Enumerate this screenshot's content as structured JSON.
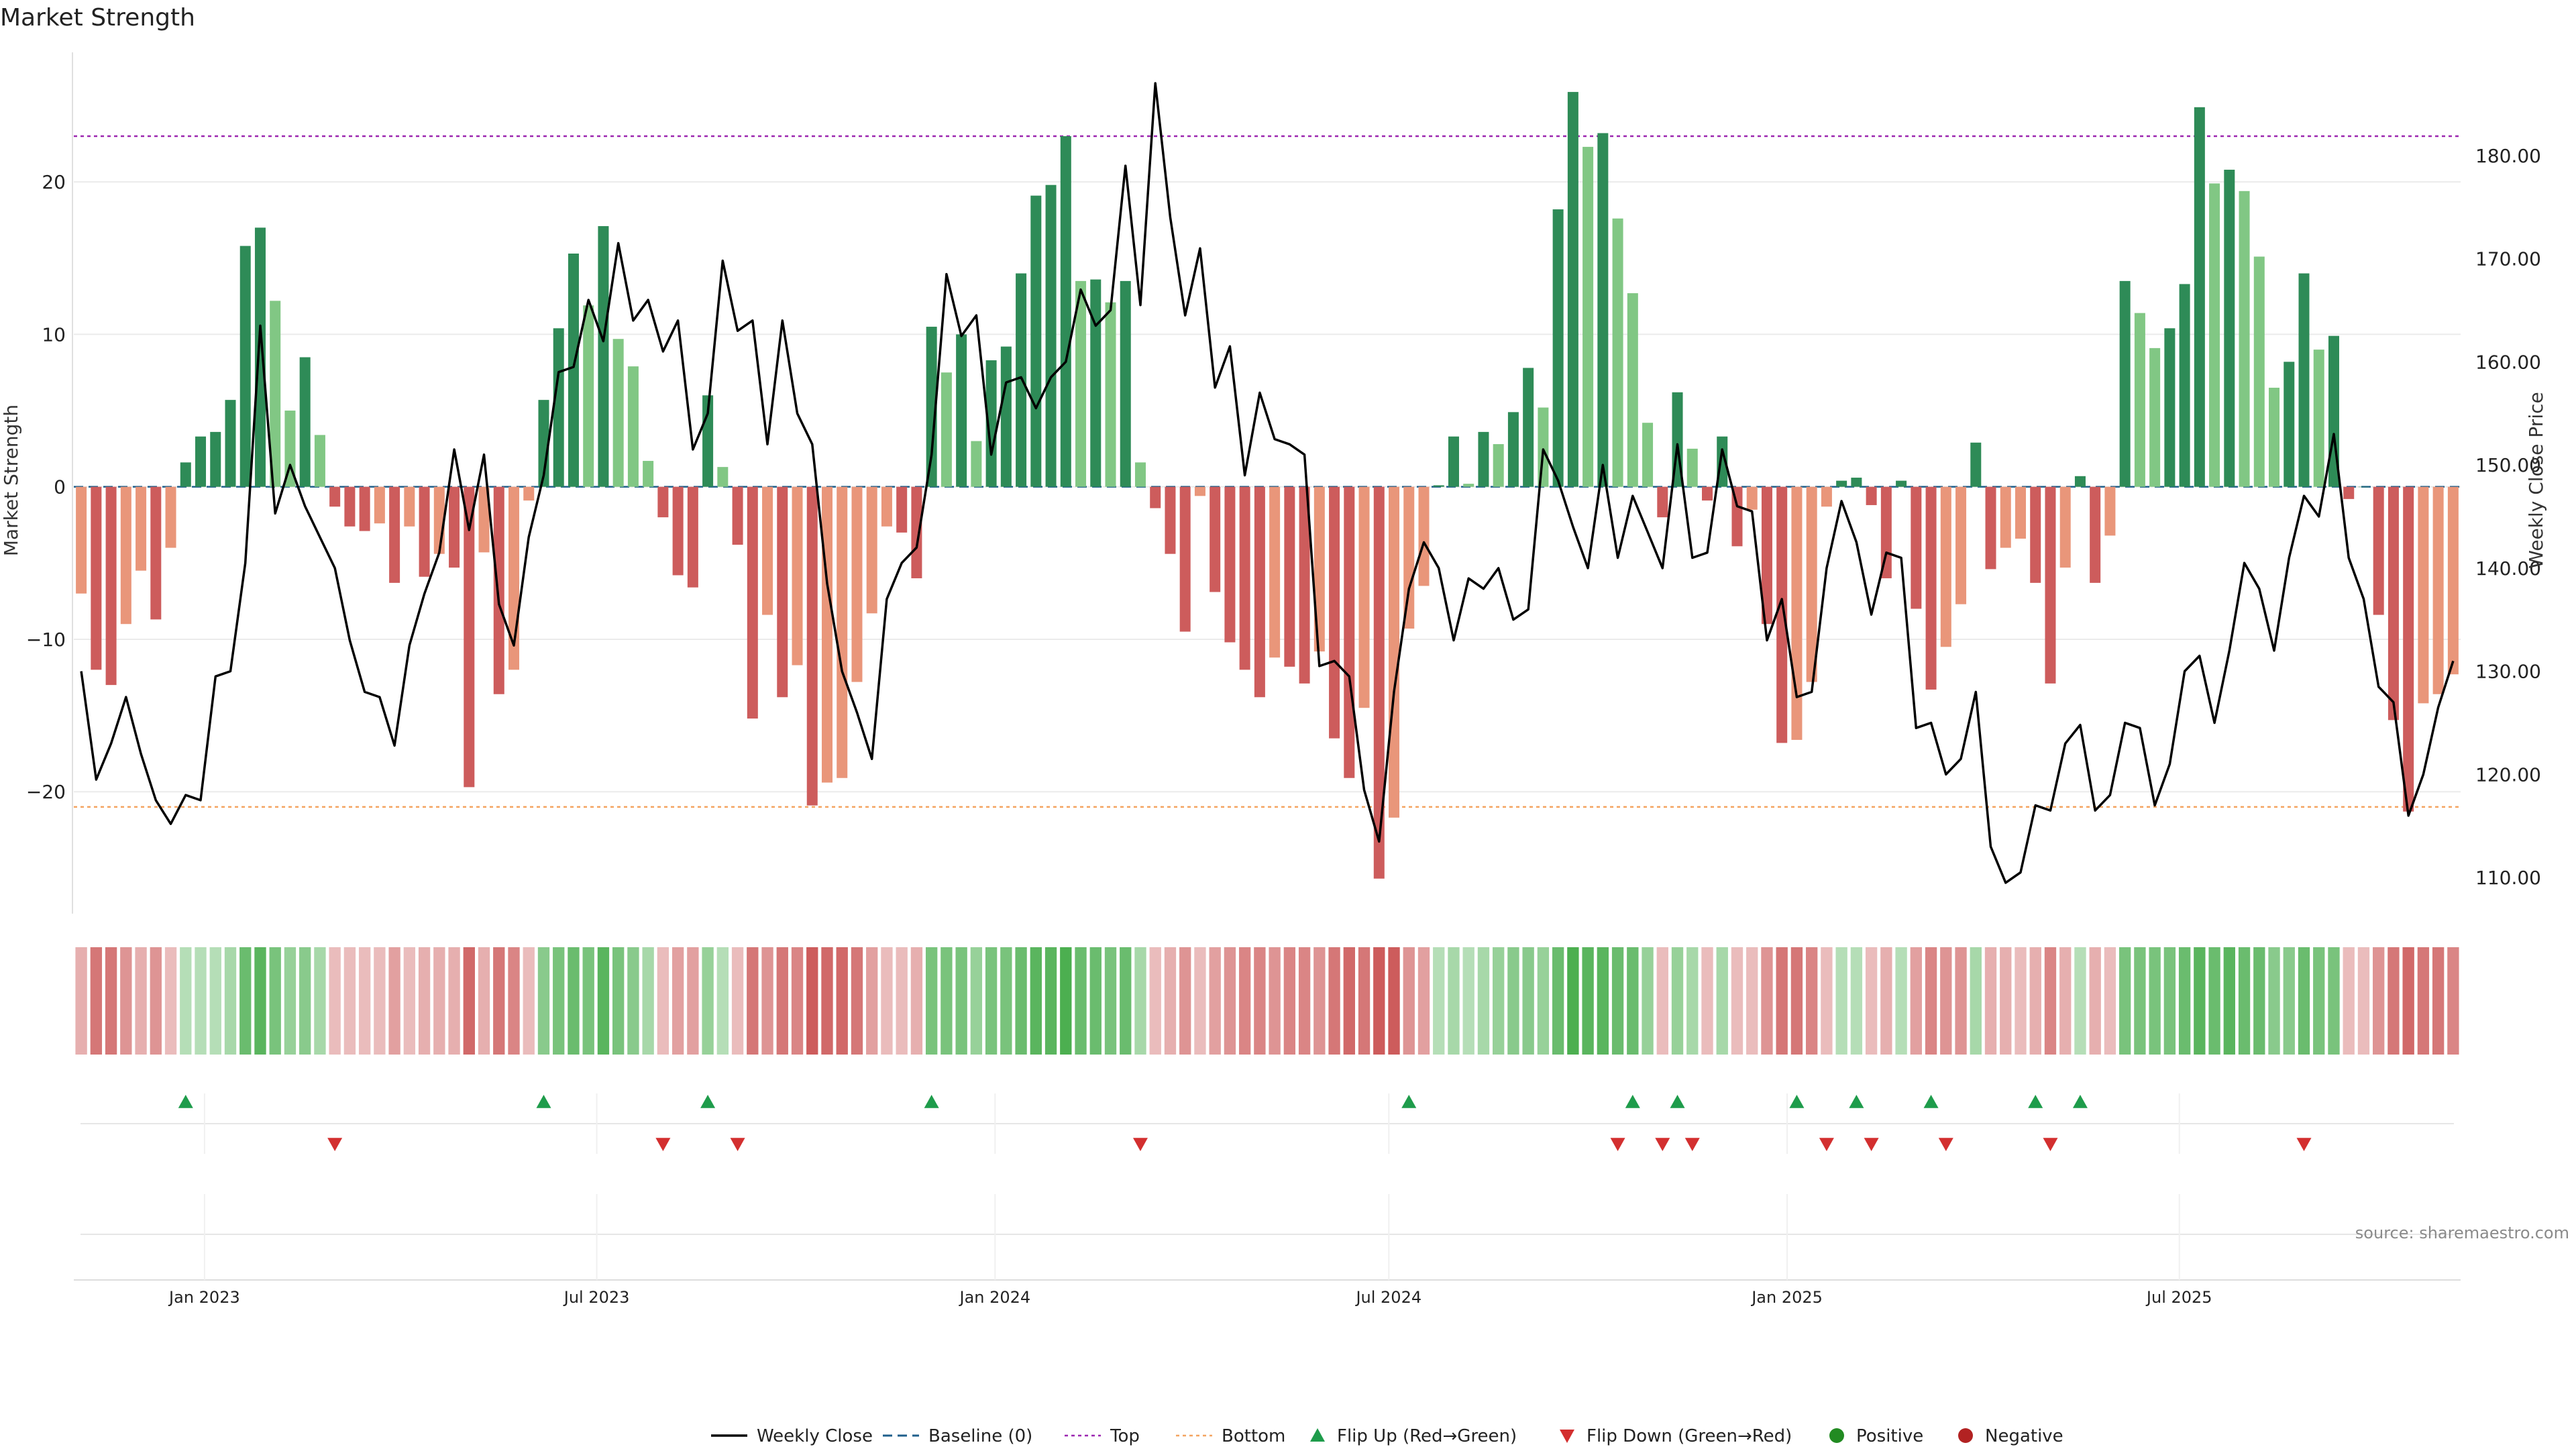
{
  "chart_data": {
    "type": "bar",
    "title": "Market Strength",
    "ylabel_left": "Market Strength",
    "ylabel_right": "Weekly Close Price",
    "source": "source: sharemaestro.com",
    "ylim_left": [
      -28,
      28.5
    ],
    "ylim_right": [
      106.5,
      190
    ],
    "yticks_left": [
      {
        "v": 20,
        "label": "20"
      },
      {
        "v": 10,
        "label": "10"
      },
      {
        "v": 0,
        "label": "0"
      },
      {
        "v": -10,
        "label": "−10"
      },
      {
        "v": -20,
        "label": "−20"
      }
    ],
    "yticks_right": [
      {
        "v": 180,
        "label": "180.00"
      },
      {
        "v": 170,
        "label": "170.00"
      },
      {
        "v": 160,
        "label": "160.00"
      },
      {
        "v": 150,
        "label": "150.00"
      },
      {
        "v": 140,
        "label": "140.00"
      },
      {
        "v": 130,
        "label": "130.00"
      },
      {
        "v": 120,
        "label": "120.00"
      },
      {
        "v": 110,
        "label": "110.00"
      }
    ],
    "x_ticks": [
      {
        "week": 8.6,
        "label": "Jan 2023"
      },
      {
        "week": 34.4,
        "label": "Jul 2023"
      },
      {
        "week": 60.6,
        "label": "Jan 2024"
      },
      {
        "week": 86.5,
        "label": "Jul 2024"
      },
      {
        "week": 112.7,
        "label": "Jan 2025"
      },
      {
        "week": 138.5,
        "label": "Jul 2025"
      }
    ],
    "x_range": [
      0,
      157
    ],
    "top_line": 23,
    "bottom_line": -21,
    "baseline": 0,
    "series": [
      {
        "name": "Market Strength",
        "values": [
          -7,
          -12,
          -13,
          -9,
          -5.5,
          -8.7,
          -4,
          1.6,
          3.3,
          3.6,
          5.7,
          15.8,
          17,
          12.2,
          5,
          8.5,
          3.4,
          -1.3,
          -2.6,
          -2.9,
          -2.4,
          -6.3,
          -2.6,
          -5.9,
          -4.4,
          -5.3,
          -19.7,
          -4.3,
          -13.6,
          -12,
          -0.9,
          5.7,
          10.4,
          15.3,
          11.9,
          17.1,
          9.7,
          7.9,
          1.7,
          -2,
          -5.8,
          -6.6,
          6,
          1.3,
          -3.8,
          -15.2,
          -8.4,
          -13.8,
          -11.7,
          -20.9,
          -19.4,
          -19.1,
          -12.8,
          -8.3,
          -2.6,
          -3,
          -6,
          10.5,
          7.5,
          10,
          3,
          8.3,
          9.2,
          14,
          19.1,
          19.8,
          23,
          13.5,
          13.6,
          12.1,
          13.5,
          1.6,
          -1.4,
          -4.4,
          -9.5,
          -0.6,
          -6.9,
          -10.2,
          -12,
          -13.8,
          -11.2,
          -11.8,
          -12.9,
          -10.8,
          -16.5,
          -19.1,
          -14.5,
          -25.7,
          -21.7,
          -9.3,
          -6.5,
          0.1,
          3.3,
          0.2,
          3.6,
          2.8,
          4.9,
          7.8,
          5.2,
          18.2,
          25.9,
          22.3,
          23.2,
          17.6,
          12.7,
          4.2,
          -2,
          6.2,
          2.5,
          -0.9,
          3.3,
          -3.9,
          -1.5,
          -9,
          -16.8,
          -16.6,
          -12.8,
          -1.3,
          0.4,
          0.6,
          -1.2,
          -6,
          0.4,
          -8,
          -13.3,
          -10.5,
          -7.7,
          2.9,
          -5.4,
          -4,
          -3.4,
          -6.3,
          -12.9,
          -5.3,
          0.7,
          -6.3,
          -3.2,
          13.5,
          11.4,
          9.1,
          10.4,
          13.3,
          24.9,
          19.9,
          20.8,
          19.4,
          15.1,
          6.5,
          8.2,
          14,
          9,
          9.9,
          -0.8,
          0,
          -8.4,
          -15.3,
          -21.3,
          -14.2,
          -13.6,
          -12.3
        ]
      },
      {
        "name": "Weekly Close",
        "values": [
          130,
          119.5,
          123,
          127.5,
          122,
          117.5,
          115.2,
          118,
          117.5,
          129.5,
          130,
          140.5,
          163.5,
          145.3,
          150,
          146,
          143,
          140,
          133,
          128,
          127.5,
          122.8,
          132.5,
          137.5,
          141.5,
          151.5,
          143.7,
          151,
          136.5,
          132.5,
          143,
          149,
          159,
          159.5,
          166,
          162,
          171.5,
          164,
          166,
          161,
          164,
          151.5,
          155,
          169.8,
          163,
          164,
          152,
          164,
          155,
          152,
          138.5,
          130,
          126,
          121.5,
          137,
          140.5,
          142,
          151,
          168.5,
          162.5,
          164.5,
          151,
          158,
          158.5,
          155.5,
          158.5,
          160,
          167,
          163.5,
          165,
          179,
          165.5,
          187,
          174,
          164.5,
          171,
          157.5,
          161.5,
          149,
          157,
          152.5,
          152,
          151,
          130.5,
          131,
          129.5,
          118.5,
          113.5,
          128,
          138,
          142.5,
          140,
          133,
          139,
          138,
          140,
          135,
          136,
          151.5,
          148.5,
          144,
          140,
          150,
          141,
          147,
          143.5,
          140,
          152,
          141,
          141.5,
          151.5,
          146,
          145.5,
          133,
          137,
          127.5,
          128,
          140,
          146.5,
          142.5,
          135.5,
          141.5,
          141,
          124.5,
          125,
          120,
          121.5,
          128,
          113,
          109.5,
          110.5,
          117,
          116.5,
          123,
          124.8,
          116.5,
          118,
          125,
          124.5,
          117,
          121,
          130,
          131.5,
          125,
          132,
          140.5,
          138,
          132,
          141,
          147,
          145,
          153,
          141,
          137,
          128.5,
          127,
          116,
          120,
          126.5,
          131
        ]
      }
    ],
    "color_strip": [
      -4,
      -8,
      -8,
      -6,
      -4,
      -6,
      -3,
      3,
      3,
      3,
      4,
      8,
      9,
      7,
      5,
      6,
      4,
      -3,
      -3,
      -3,
      -3,
      -5,
      -3,
      -4,
      -4,
      -4,
      -9,
      -4,
      -8,
      -7,
      -3,
      6,
      7,
      8,
      7,
      9,
      7,
      6,
      4,
      -3,
      -5,
      -5,
      5,
      3,
      -3,
      -8,
      -6,
      -8,
      -7,
      -10,
      -9,
      -9,
      -8,
      -5,
      -3,
      -3,
      -4,
      7,
      7,
      7,
      5,
      7,
      7,
      8,
      9,
      9,
      10,
      8,
      8,
      7,
      8,
      4,
      -3,
      -4,
      -6,
      -3,
      -5,
      -6,
      -7,
      -7,
      -6,
      -7,
      -7,
      -6,
      -8,
      -9,
      -8,
      -10,
      -10,
      -6,
      -5,
      3,
      4,
      3,
      4,
      5,
      6,
      6,
      5,
      8,
      10,
      9,
      9,
      8,
      8,
      5,
      -3,
      5,
      4,
      -3,
      4,
      -3,
      -3,
      -6,
      -8,
      -8,
      -7,
      -3,
      3,
      3,
      -3,
      -4,
      3,
      -5,
      -7,
      -6,
      -6,
      4,
      -4,
      -4,
      -3,
      -4,
      -7,
      -4,
      3,
      -4,
      -3,
      7,
      7,
      7,
      7,
      8,
      9,
      8,
      9,
      8,
      8,
      6,
      6,
      8,
      7,
      7,
      -3,
      -3,
      -6,
      -8,
      -9,
      -8,
      -8,
      -7
    ],
    "flip_up_weeks": [
      7,
      31,
      42,
      57,
      89,
      104,
      107,
      115,
      119,
      124,
      131,
      134
    ],
    "flip_down_weeks": [
      17,
      39,
      44,
      71,
      103,
      106,
      108,
      117,
      120,
      125,
      132,
      149
    ],
    "legend": [
      {
        "key": "close",
        "label": "Weekly Close"
      },
      {
        "key": "baseline",
        "label": "Baseline (0)"
      },
      {
        "key": "top",
        "label": "Top"
      },
      {
        "key": "bottom",
        "label": "Bottom"
      },
      {
        "key": "flip_up",
        "label": "Flip Up (Red→Green)"
      },
      {
        "key": "flip_down",
        "label": "Flip Down (Green→Red)"
      },
      {
        "key": "positive",
        "label": "Positive"
      },
      {
        "key": "negative",
        "label": "Negative"
      }
    ],
    "colors": {
      "pos_dark": "#2e8b57",
      "pos_light": "#81c784",
      "neg_dark": "#cd5c5c",
      "neg_light": "#e9967a",
      "close_line": "#000000",
      "baseline": "#1f5f8b",
      "top_line": "#9c27b0",
      "bottom_line": "#f4a460",
      "flip_up": "#1e9c4b",
      "flip_down": "#d32f2f",
      "positive_dot": "#228b22",
      "negative_dot": "#b22222",
      "grid": "#ebebeb"
    }
  }
}
